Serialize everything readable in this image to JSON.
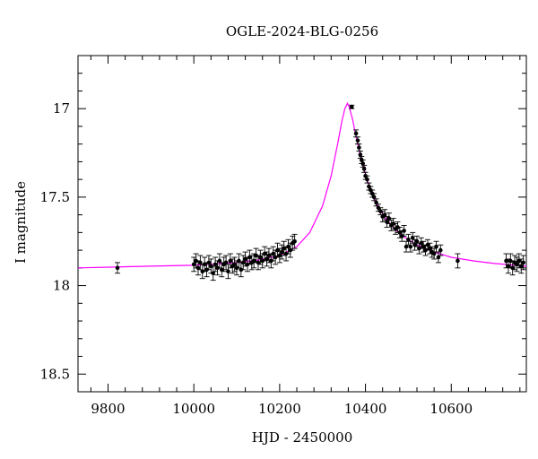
{
  "chart_data": {
    "type": "scatter",
    "title": "OGLE-2024-BLG-0256",
    "xlabel": "HJD - 2450000",
    "ylabel": "I magnitude",
    "xlim": [
      9730,
      10775
    ],
    "ylim": [
      18.6,
      16.7
    ],
    "y_inverted": true,
    "x_ticks": [
      9800,
      10000,
      10200,
      10400,
      10600
    ],
    "y_ticks": [
      17,
      17.5,
      18,
      18.5
    ],
    "grid": false,
    "colors": {
      "model": "#ff00ff",
      "points": "#000000",
      "axes": "#000000"
    },
    "model_curve": {
      "name": "model",
      "baseline": 17.9,
      "peak_x": 10358,
      "peak_y": 16.97,
      "x": [
        9730,
        9900,
        10000,
        10100,
        10150,
        10200,
        10240,
        10270,
        10300,
        10320,
        10335,
        10345,
        10352,
        10358,
        10362,
        10370,
        10380,
        10395,
        10410,
        10430,
        10450,
        10480,
        10520,
        10560,
        10600,
        10650,
        10700,
        10775
      ],
      "y": [
        17.9,
        17.89,
        17.885,
        17.87,
        17.855,
        17.83,
        17.78,
        17.7,
        17.55,
        17.38,
        17.2,
        17.07,
        17.0,
        16.97,
        16.99,
        17.06,
        17.18,
        17.33,
        17.45,
        17.56,
        17.63,
        17.71,
        17.77,
        17.81,
        17.84,
        17.86,
        17.875,
        17.89
      ]
    },
    "points": [
      {
        "x": 9822,
        "y": 17.9,
        "err": 0.03
      },
      {
        "x": 10000,
        "y": 17.88,
        "err": 0.04
      },
      {
        "x": 10005,
        "y": 17.86,
        "err": 0.04
      },
      {
        "x": 10010,
        "y": 17.9,
        "err": 0.04
      },
      {
        "x": 10015,
        "y": 17.87,
        "err": 0.04
      },
      {
        "x": 10020,
        "y": 17.92,
        "err": 0.04
      },
      {
        "x": 10025,
        "y": 17.88,
        "err": 0.04
      },
      {
        "x": 10030,
        "y": 17.91,
        "err": 0.04
      },
      {
        "x": 10035,
        "y": 17.87,
        "err": 0.04
      },
      {
        "x": 10040,
        "y": 17.89,
        "err": 0.04
      },
      {
        "x": 10045,
        "y": 17.93,
        "err": 0.04
      },
      {
        "x": 10050,
        "y": 17.88,
        "err": 0.04
      },
      {
        "x": 10055,
        "y": 17.9,
        "err": 0.04
      },
      {
        "x": 10060,
        "y": 17.86,
        "err": 0.04
      },
      {
        "x": 10065,
        "y": 17.91,
        "err": 0.04
      },
      {
        "x": 10070,
        "y": 17.88,
        "err": 0.04
      },
      {
        "x": 10075,
        "y": 17.87,
        "err": 0.04
      },
      {
        "x": 10080,
        "y": 17.92,
        "err": 0.04
      },
      {
        "x": 10085,
        "y": 17.86,
        "err": 0.04
      },
      {
        "x": 10090,
        "y": 17.89,
        "err": 0.04
      },
      {
        "x": 10095,
        "y": 17.88,
        "err": 0.04
      },
      {
        "x": 10100,
        "y": 17.9,
        "err": 0.04
      },
      {
        "x": 10105,
        "y": 17.86,
        "err": 0.04
      },
      {
        "x": 10110,
        "y": 17.91,
        "err": 0.04
      },
      {
        "x": 10115,
        "y": 17.87,
        "err": 0.04
      },
      {
        "x": 10120,
        "y": 17.85,
        "err": 0.04
      },
      {
        "x": 10125,
        "y": 17.88,
        "err": 0.04
      },
      {
        "x": 10130,
        "y": 17.84,
        "err": 0.04
      },
      {
        "x": 10135,
        "y": 17.87,
        "err": 0.04
      },
      {
        "x": 10140,
        "y": 17.86,
        "err": 0.04
      },
      {
        "x": 10145,
        "y": 17.83,
        "err": 0.04
      },
      {
        "x": 10150,
        "y": 17.87,
        "err": 0.04
      },
      {
        "x": 10155,
        "y": 17.84,
        "err": 0.04
      },
      {
        "x": 10160,
        "y": 17.86,
        "err": 0.04
      },
      {
        "x": 10165,
        "y": 17.82,
        "err": 0.04
      },
      {
        "x": 10170,
        "y": 17.85,
        "err": 0.04
      },
      {
        "x": 10175,
        "y": 17.83,
        "err": 0.04
      },
      {
        "x": 10180,
        "y": 17.86,
        "err": 0.04
      },
      {
        "x": 10185,
        "y": 17.82,
        "err": 0.04
      },
      {
        "x": 10190,
        "y": 17.84,
        "err": 0.04
      },
      {
        "x": 10195,
        "y": 17.8,
        "err": 0.04
      },
      {
        "x": 10200,
        "y": 17.83,
        "err": 0.04
      },
      {
        "x": 10205,
        "y": 17.81,
        "err": 0.04
      },
      {
        "x": 10210,
        "y": 17.79,
        "err": 0.04
      },
      {
        "x": 10215,
        "y": 17.82,
        "err": 0.04
      },
      {
        "x": 10220,
        "y": 17.78,
        "err": 0.04
      },
      {
        "x": 10225,
        "y": 17.8,
        "err": 0.04
      },
      {
        "x": 10230,
        "y": 17.76,
        "err": 0.04
      },
      {
        "x": 10235,
        "y": 17.75,
        "err": 0.04
      },
      {
        "x": 10368,
        "y": 16.99,
        "err": 0.01
      },
      {
        "x": 10378,
        "y": 17.14,
        "err": 0.02
      },
      {
        "x": 10382,
        "y": 17.18,
        "err": 0.02
      },
      {
        "x": 10385,
        "y": 17.22,
        "err": 0.02
      },
      {
        "x": 10388,
        "y": 17.26,
        "err": 0.02
      },
      {
        "x": 10391,
        "y": 17.29,
        "err": 0.02
      },
      {
        "x": 10394,
        "y": 17.31,
        "err": 0.02
      },
      {
        "x": 10397,
        "y": 17.34,
        "err": 0.02
      },
      {
        "x": 10400,
        "y": 17.38,
        "err": 0.02
      },
      {
        "x": 10404,
        "y": 17.4,
        "err": 0.02
      },
      {
        "x": 10408,
        "y": 17.44,
        "err": 0.02
      },
      {
        "x": 10412,
        "y": 17.46,
        "err": 0.02
      },
      {
        "x": 10416,
        "y": 17.48,
        "err": 0.02
      },
      {
        "x": 10420,
        "y": 17.5,
        "err": 0.02
      },
      {
        "x": 10425,
        "y": 17.53,
        "err": 0.02
      },
      {
        "x": 10430,
        "y": 17.56,
        "err": 0.02
      },
      {
        "x": 10435,
        "y": 17.58,
        "err": 0.02
      },
      {
        "x": 10440,
        "y": 17.61,
        "err": 0.03
      },
      {
        "x": 10445,
        "y": 17.6,
        "err": 0.03
      },
      {
        "x": 10450,
        "y": 17.64,
        "err": 0.03
      },
      {
        "x": 10455,
        "y": 17.62,
        "err": 0.03
      },
      {
        "x": 10460,
        "y": 17.66,
        "err": 0.03
      },
      {
        "x": 10465,
        "y": 17.65,
        "err": 0.03
      },
      {
        "x": 10470,
        "y": 17.68,
        "err": 0.03
      },
      {
        "x": 10475,
        "y": 17.67,
        "err": 0.03
      },
      {
        "x": 10480,
        "y": 17.7,
        "err": 0.03
      },
      {
        "x": 10485,
        "y": 17.72,
        "err": 0.03
      },
      {
        "x": 10490,
        "y": 17.69,
        "err": 0.03
      },
      {
        "x": 10495,
        "y": 17.78,
        "err": 0.03
      },
      {
        "x": 10500,
        "y": 17.74,
        "err": 0.03
      },
      {
        "x": 10505,
        "y": 17.78,
        "err": 0.03
      },
      {
        "x": 10510,
        "y": 17.73,
        "err": 0.03
      },
      {
        "x": 10515,
        "y": 17.77,
        "err": 0.03
      },
      {
        "x": 10520,
        "y": 17.75,
        "err": 0.03
      },
      {
        "x": 10525,
        "y": 17.79,
        "err": 0.03
      },
      {
        "x": 10530,
        "y": 17.76,
        "err": 0.03
      },
      {
        "x": 10535,
        "y": 17.78,
        "err": 0.03
      },
      {
        "x": 10540,
        "y": 17.8,
        "err": 0.03
      },
      {
        "x": 10545,
        "y": 17.77,
        "err": 0.03
      },
      {
        "x": 10550,
        "y": 17.79,
        "err": 0.03
      },
      {
        "x": 10555,
        "y": 17.81,
        "err": 0.03
      },
      {
        "x": 10560,
        "y": 17.82,
        "err": 0.03
      },
      {
        "x": 10565,
        "y": 17.78,
        "err": 0.03
      },
      {
        "x": 10570,
        "y": 17.84,
        "err": 0.03
      },
      {
        "x": 10575,
        "y": 17.8,
        "err": 0.03
      },
      {
        "x": 10615,
        "y": 17.86,
        "err": 0.04
      },
      {
        "x": 10728,
        "y": 17.86,
        "err": 0.04
      },
      {
        "x": 10733,
        "y": 17.89,
        "err": 0.04
      },
      {
        "x": 10738,
        "y": 17.86,
        "err": 0.04
      },
      {
        "x": 10743,
        "y": 17.9,
        "err": 0.04
      },
      {
        "x": 10748,
        "y": 17.87,
        "err": 0.04
      },
      {
        "x": 10753,
        "y": 17.88,
        "err": 0.04
      },
      {
        "x": 10758,
        "y": 17.86,
        "err": 0.04
      },
      {
        "x": 10763,
        "y": 17.89,
        "err": 0.04
      },
      {
        "x": 10768,
        "y": 17.87,
        "err": 0.04
      }
    ]
  }
}
